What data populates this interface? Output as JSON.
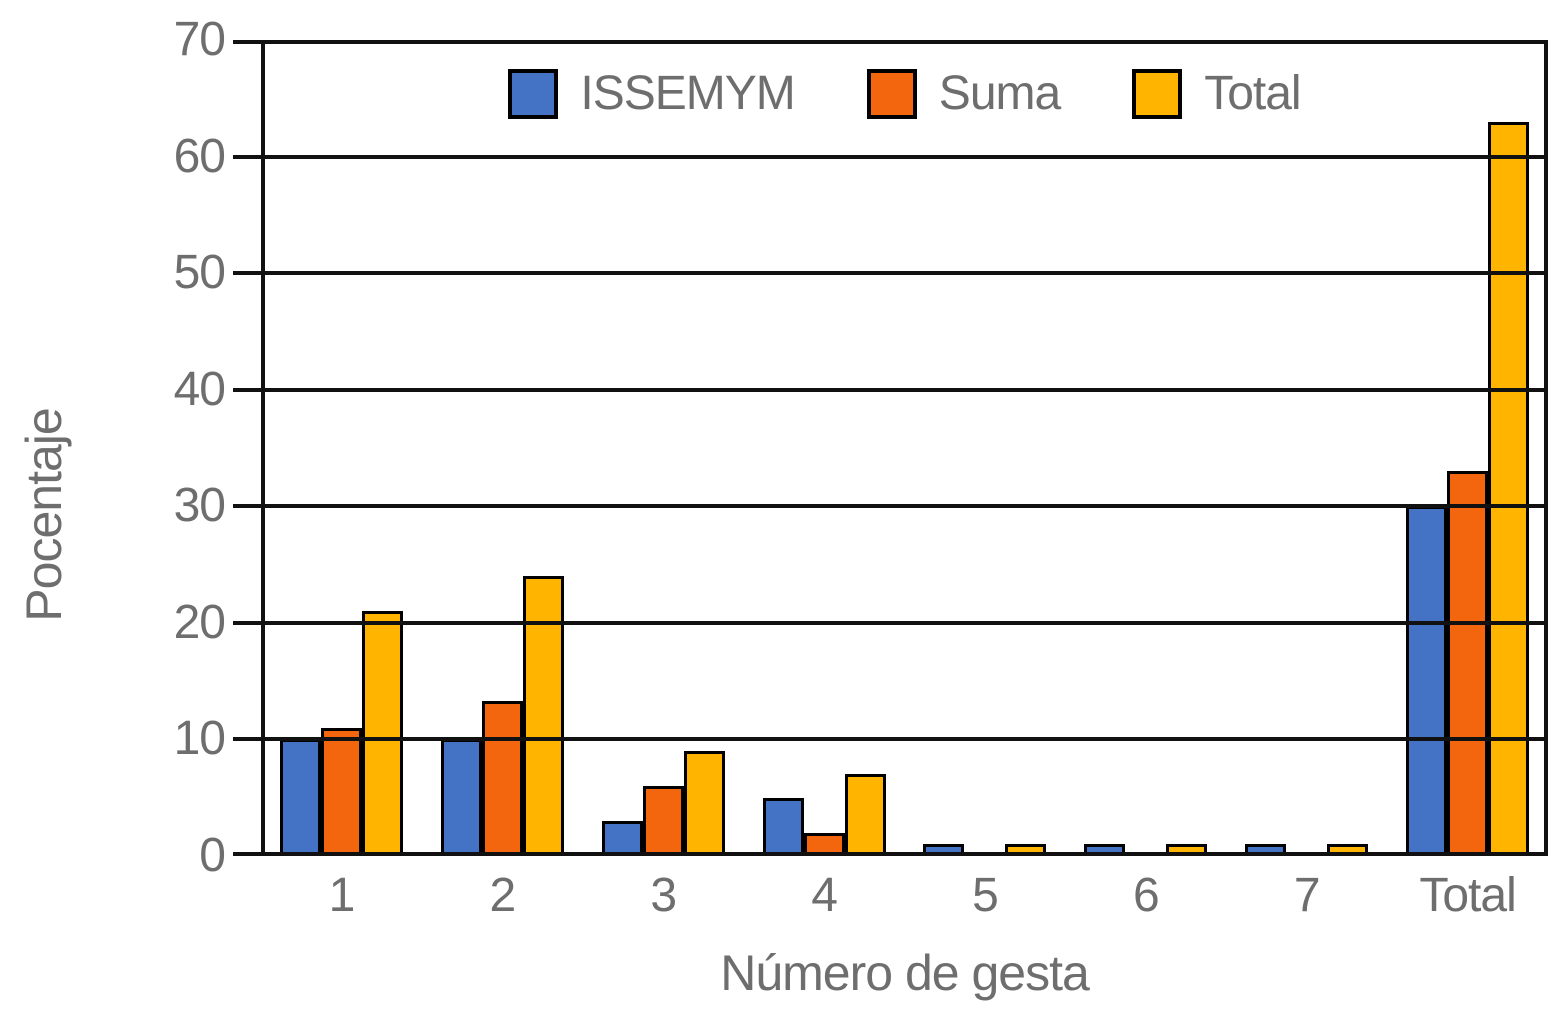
{
  "chart_data": {
    "type": "bar",
    "title": "",
    "categories": [
      "1",
      "2",
      "3",
      "4",
      "5",
      "6",
      "7",
      "Total"
    ],
    "series": [
      {
        "name": "ISSEMYM",
        "color": "#4472C4",
        "values": [
          10,
          10,
          3,
          5,
          1,
          1,
          1,
          30
        ]
      },
      {
        "name": "Suma",
        "color": "#F4660D",
        "values": [
          11,
          13.3,
          6,
          2,
          0,
          0,
          0,
          33
        ]
      },
      {
        "name": "Total",
        "color": "#FFB400",
        "values": [
          21,
          24,
          9,
          7,
          1,
          1,
          1,
          63
        ]
      }
    ],
    "xlabel": "Número de gesta",
    "ylabel": "Pocentaje",
    "ylim": [
      0,
      70
    ],
    "ytick_step": 10,
    "yticks": [
      0,
      10,
      20,
      30,
      40,
      50,
      60,
      70
    ],
    "grid": true,
    "legend_position": "top-center",
    "bar_outline_color": "#000000",
    "axis_line_color": "#111111",
    "text_color": "#6e6e6e"
  }
}
